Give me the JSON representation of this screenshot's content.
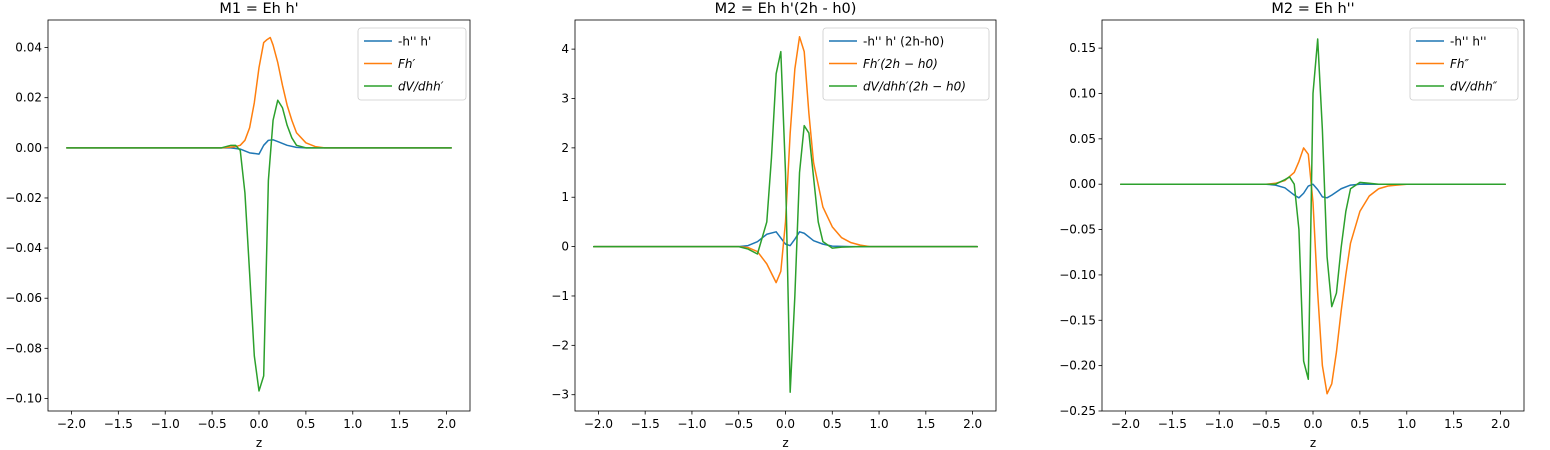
{
  "chart_data": [
    {
      "type": "line",
      "title": "M1 = Eh h'",
      "xlabel": "z",
      "ylabel": "",
      "xlim": [
        -2.25,
        2.25
      ],
      "ylim": [
        -0.105,
        0.051
      ],
      "xticks": [
        -2.0,
        -1.5,
        -1.0,
        -0.5,
        0.0,
        0.5,
        1.0,
        1.5,
        2.0
      ],
      "xtick_labels": [
        "−2.0",
        "−1.5",
        "−1.0",
        "−0.5",
        "0.0",
        "0.5",
        "1.0",
        "1.5",
        "2.0"
      ],
      "yticks": [
        -0.1,
        -0.08,
        -0.06,
        -0.04,
        -0.02,
        0.0,
        0.02,
        0.04
      ],
      "ytick_labels": [
        "−0.10",
        "−0.08",
        "−0.06",
        "−0.04",
        "−0.02",
        "0.00",
        "0.02",
        "0.04"
      ],
      "grid": false,
      "legend_position": "top-right",
      "series": [
        {
          "name": "-h'' h'",
          "legend_math": false,
          "color": "#1f77b4",
          "x": [
            -2.05,
            -0.4,
            -0.3,
            -0.2,
            -0.1,
            0.0,
            0.05,
            0.1,
            0.15,
            0.2,
            0.3,
            0.4,
            0.5,
            0.7,
            2.05
          ],
          "y": [
            0,
            0,
            0,
            -0.0005,
            -0.002,
            -0.0025,
            0.001,
            0.003,
            0.0032,
            0.0025,
            0.001,
            0.0002,
            0,
            0,
            0
          ]
        },
        {
          "name": "Fh′",
          "legend_math": true,
          "color": "#ff7f0e",
          "x": [
            -2.05,
            -0.4,
            -0.25,
            -0.2,
            -0.15,
            -0.1,
            -0.05,
            0.0,
            0.05,
            0.08,
            0.12,
            0.15,
            0.2,
            0.25,
            0.3,
            0.35,
            0.4,
            0.5,
            0.6,
            0.7,
            2.05
          ],
          "y": [
            0,
            0,
            0.0005,
            0.001,
            0.003,
            0.008,
            0.018,
            0.032,
            0.042,
            0.043,
            0.044,
            0.041,
            0.034,
            0.025,
            0.017,
            0.011,
            0.006,
            0.002,
            0.0005,
            0,
            0
          ]
        },
        {
          "name": "dV/dhh′",
          "legend_math": true,
          "color": "#2ca02c",
          "x": [
            -2.05,
            -0.4,
            -0.3,
            -0.25,
            -0.2,
            -0.15,
            -0.1,
            -0.05,
            0.0,
            0.05,
            0.1,
            0.15,
            0.2,
            0.25,
            0.3,
            0.35,
            0.4,
            0.5,
            0.6,
            2.05
          ],
          "y": [
            0,
            0,
            0.001,
            0.001,
            -0.001,
            -0.018,
            -0.05,
            -0.083,
            -0.097,
            -0.091,
            -0.013,
            0.011,
            0.019,
            0.016,
            0.009,
            0.004,
            0.001,
            0,
            0,
            0
          ]
        }
      ]
    },
    {
      "type": "line",
      "title": "M2 = Eh h'(2h - h0)",
      "xlabel": "z",
      "ylabel": "",
      "xlim": [
        -2.25,
        2.25
      ],
      "ylim": [
        -3.33,
        4.59
      ],
      "xticks": [
        -2.0,
        -1.5,
        -1.0,
        -0.5,
        0.0,
        0.5,
        1.0,
        1.5,
        2.0
      ],
      "xtick_labels": [
        "−2.0",
        "−1.5",
        "−1.0",
        "−0.5",
        "0.0",
        "0.5",
        "1.0",
        "1.5",
        "2.0"
      ],
      "yticks": [
        -3,
        -2,
        -1,
        0,
        1,
        2,
        3,
        4
      ],
      "ytick_labels": [
        "−3",
        "−2",
        "−1",
        "0",
        "1",
        "2",
        "3",
        "4"
      ],
      "grid": false,
      "legend_position": "top-right",
      "series": [
        {
          "name": "-h'' h' (2h-h0)",
          "legend_math": false,
          "color": "#1f77b4",
          "x": [
            -2.05,
            -0.5,
            -0.4,
            -0.3,
            -0.2,
            -0.1,
            0.0,
            0.05,
            0.1,
            0.15,
            0.2,
            0.3,
            0.4,
            0.5,
            0.7,
            2.05
          ],
          "y": [
            0,
            0,
            0.02,
            0.1,
            0.25,
            0.3,
            0.05,
            0.02,
            0.15,
            0.3,
            0.27,
            0.12,
            0.05,
            0.01,
            0,
            0
          ]
        },
        {
          "name": "Fh′(2h − h0)",
          "legend_math": true,
          "color": "#ff7f0e",
          "x": [
            -2.05,
            -0.5,
            -0.4,
            -0.3,
            -0.2,
            -0.1,
            -0.05,
            0.0,
            0.05,
            0.1,
            0.15,
            0.2,
            0.25,
            0.3,
            0.4,
            0.5,
            0.6,
            0.7,
            0.8,
            0.9,
            2.05
          ],
          "y": [
            0,
            0,
            -0.02,
            -0.1,
            -0.35,
            -0.73,
            -0.5,
            0.5,
            2.3,
            3.6,
            4.25,
            3.95,
            2.7,
            1.7,
            0.8,
            0.4,
            0.18,
            0.08,
            0.03,
            0,
            0
          ]
        },
        {
          "name": "dV/dhh′(2h − h0)",
          "legend_math": true,
          "color": "#2ca02c",
          "x": [
            -2.05,
            -0.5,
            -0.4,
            -0.3,
            -0.2,
            -0.15,
            -0.1,
            -0.05,
            0.0,
            0.05,
            0.1,
            0.15,
            0.2,
            0.25,
            0.3,
            0.35,
            0.4,
            0.5,
            0.6,
            0.8,
            2.05
          ],
          "y": [
            0,
            0,
            -0.05,
            -0.15,
            0.5,
            1.8,
            3.5,
            3.95,
            1.5,
            -2.95,
            -1.0,
            1.5,
            2.45,
            2.3,
            1.4,
            0.5,
            0.1,
            -0.03,
            -0.01,
            0,
            0
          ]
        }
      ]
    },
    {
      "type": "line",
      "title": "M2 = Eh h''",
      "xlabel": "z",
      "ylabel": "",
      "xlim": [
        -2.25,
        2.25
      ],
      "ylim": [
        -0.25,
        0.181
      ],
      "xticks": [
        -2.0,
        -1.5,
        -1.0,
        -0.5,
        0.0,
        0.5,
        1.0,
        1.5,
        2.0
      ],
      "xtick_labels": [
        "−2.0",
        "−1.5",
        "−1.0",
        "−0.5",
        "0.0",
        "0.5",
        "1.0",
        "1.5",
        "2.0"
      ],
      "yticks": [
        -0.25,
        -0.2,
        -0.15,
        -0.1,
        -0.05,
        0.0,
        0.05,
        0.1,
        0.15
      ],
      "ytick_labels": [
        "−0.25",
        "−0.20",
        "−0.15",
        "−0.10",
        "−0.05",
        "0.00",
        "0.05",
        "0.10",
        "0.15"
      ],
      "grid": false,
      "legend_position": "top-right",
      "series": [
        {
          "name": "-h'' h''",
          "legend_math": false,
          "color": "#1f77b4",
          "x": [
            -2.05,
            -0.5,
            -0.4,
            -0.3,
            -0.2,
            -0.15,
            -0.1,
            -0.05,
            0.0,
            0.05,
            0.1,
            0.15,
            0.2,
            0.3,
            0.4,
            0.5,
            0.7,
            2.05
          ],
          "y": [
            0,
            0,
            -0.001,
            -0.004,
            -0.012,
            -0.015,
            -0.01,
            -0.002,
            0.0,
            -0.006,
            -0.014,
            -0.015,
            -0.012,
            -0.005,
            -0.001,
            0,
            0,
            0
          ]
        },
        {
          "name": "Fh″",
          "legend_math": true,
          "color": "#ff7f0e",
          "x": [
            -2.05,
            -0.5,
            -0.4,
            -0.3,
            -0.2,
            -0.15,
            -0.1,
            -0.05,
            0.0,
            0.05,
            0.1,
            0.15,
            0.2,
            0.25,
            0.3,
            0.35,
            0.4,
            0.5,
            0.6,
            0.7,
            0.8,
            1.0,
            2.05
          ],
          "y": [
            0,
            0,
            0.001,
            0.004,
            0.013,
            0.025,
            0.04,
            0.033,
            -0.02,
            -0.12,
            -0.2,
            -0.231,
            -0.22,
            -0.185,
            -0.14,
            -0.1,
            -0.065,
            -0.03,
            -0.013,
            -0.005,
            -0.002,
            0,
            0
          ]
        },
        {
          "name": "dV/dhh″",
          "legend_math": true,
          "color": "#2ca02c",
          "x": [
            -2.05,
            -0.4,
            -0.3,
            -0.25,
            -0.2,
            -0.15,
            -0.1,
            -0.05,
            0.0,
            0.05,
            0.1,
            0.15,
            0.2,
            0.25,
            0.3,
            0.35,
            0.4,
            0.5,
            0.6,
            0.7,
            2.05
          ],
          "y": [
            0,
            0,
            0.005,
            0.008,
            0.0,
            -0.05,
            -0.195,
            -0.215,
            0.1,
            0.16,
            0.06,
            -0.08,
            -0.135,
            -0.12,
            -0.07,
            -0.03,
            -0.005,
            0.002,
            0.001,
            0,
            0
          ]
        }
      ]
    }
  ]
}
